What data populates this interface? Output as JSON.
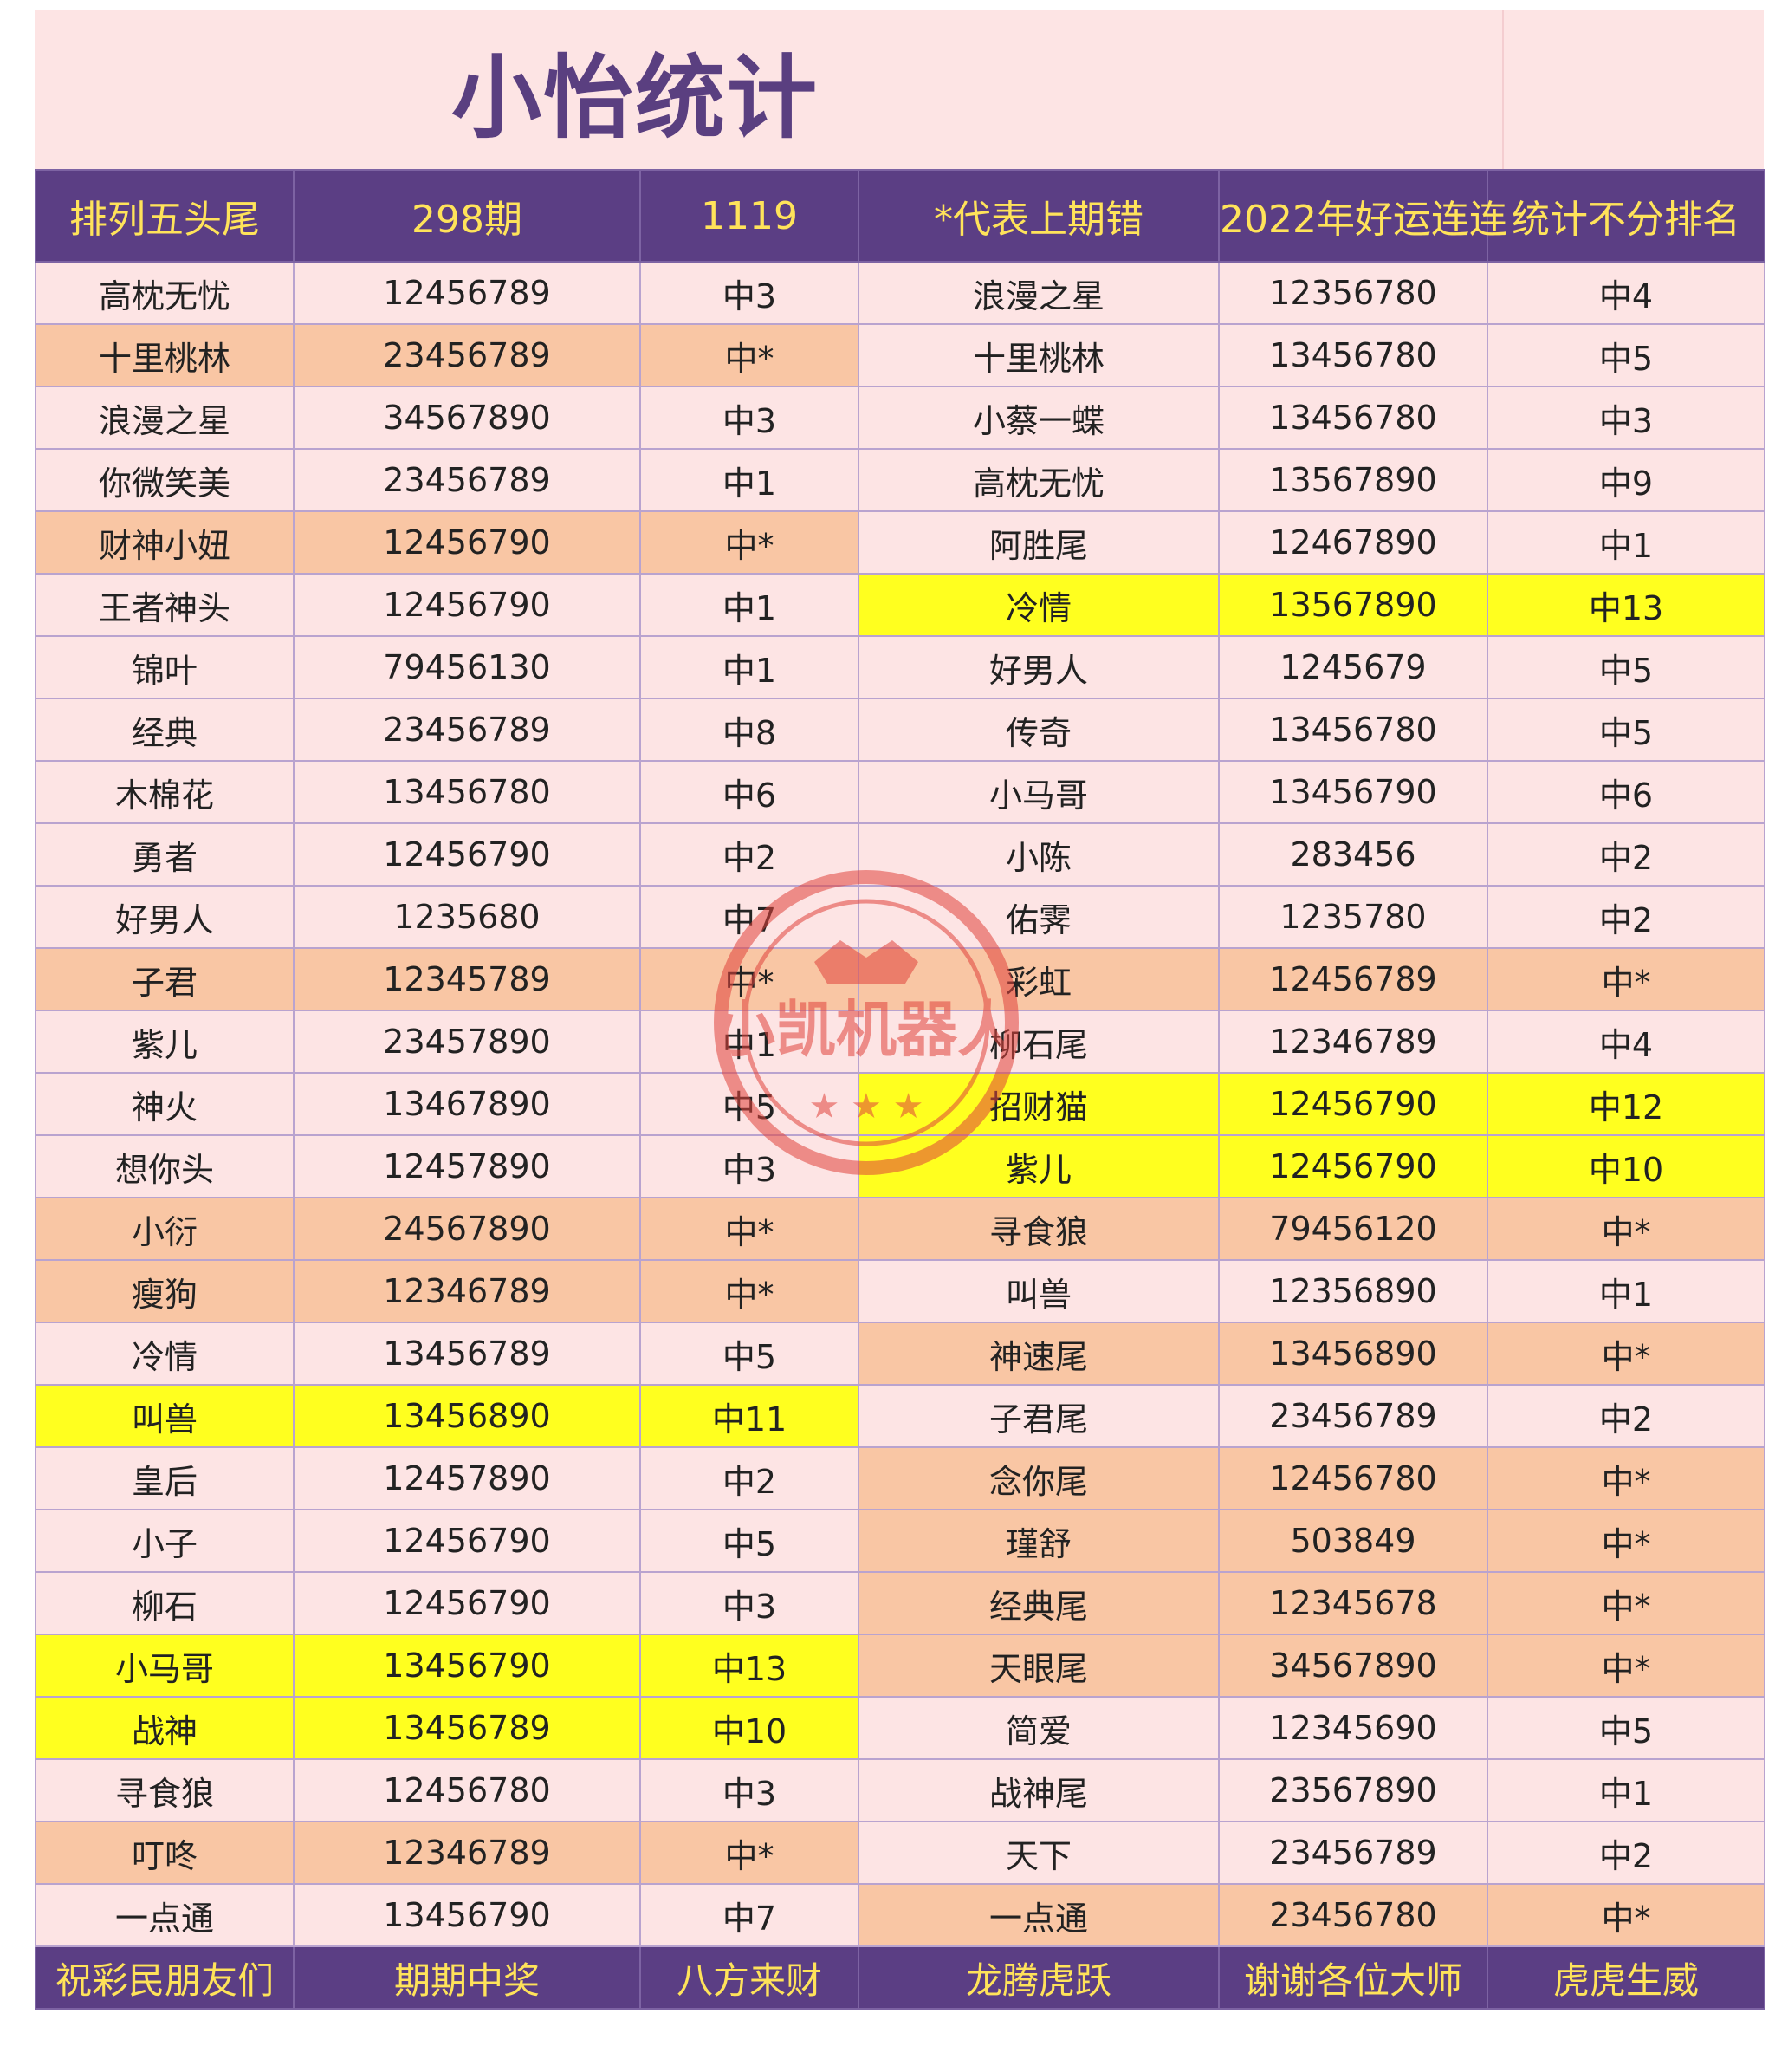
{
  "title": "小怡统计",
  "colors": {
    "pink": "#fde4e4",
    "orange": "#f9c6a4",
    "yellow": "#ffff1f",
    "header_bg": "#5b3e84",
    "header_text": "#ffe35a",
    "title_text": "#5a3f80"
  },
  "header": [
    "排列五头尾",
    "298期",
    "1119",
    "*代表上期错",
    "2022年好运连连",
    "统计不分排名"
  ],
  "rows": [
    [
      [
        "高枕无忧",
        "pink"
      ],
      [
        "12456789",
        "pink"
      ],
      [
        "中3",
        "pink"
      ],
      [
        "浪漫之星",
        "pink"
      ],
      [
        "12356780",
        "pink"
      ],
      [
        "中4",
        "pink"
      ]
    ],
    [
      [
        "十里桃林",
        "orange"
      ],
      [
        "23456789",
        "orange"
      ],
      [
        "中*",
        "orange"
      ],
      [
        "十里桃林",
        "pink"
      ],
      [
        "13456780",
        "pink"
      ],
      [
        "中5",
        "pink"
      ]
    ],
    [
      [
        "浪漫之星",
        "pink"
      ],
      [
        "34567890",
        "pink"
      ],
      [
        "中3",
        "pink"
      ],
      [
        "小蔡一蝶",
        "pink"
      ],
      [
        "13456780",
        "pink"
      ],
      [
        "中3",
        "pink"
      ]
    ],
    [
      [
        "你微笑美",
        "pink"
      ],
      [
        "23456789",
        "pink"
      ],
      [
        "中1",
        "pink"
      ],
      [
        "高枕无忧",
        "pink"
      ],
      [
        "13567890",
        "pink"
      ],
      [
        "中9",
        "pink"
      ]
    ],
    [
      [
        "财神小妞",
        "orange"
      ],
      [
        "12456790",
        "orange"
      ],
      [
        "中*",
        "orange"
      ],
      [
        "阿胜尾",
        "pink"
      ],
      [
        "12467890",
        "pink"
      ],
      [
        "中1",
        "pink"
      ]
    ],
    [
      [
        "王者神头",
        "pink"
      ],
      [
        "12456790",
        "pink"
      ],
      [
        "中1",
        "pink"
      ],
      [
        "冷情",
        "yellow"
      ],
      [
        "13567890",
        "yellow"
      ],
      [
        "中13",
        "yellow"
      ]
    ],
    [
      [
        "锦叶",
        "pink"
      ],
      [
        "79456130",
        "pink"
      ],
      [
        "中1",
        "pink"
      ],
      [
        "好男人",
        "pink"
      ],
      [
        "1245679",
        "pink"
      ],
      [
        "中5",
        "pink"
      ]
    ],
    [
      [
        "经典",
        "pink"
      ],
      [
        "23456789",
        "pink"
      ],
      [
        "中8",
        "pink"
      ],
      [
        "传奇",
        "pink"
      ],
      [
        "13456780",
        "pink"
      ],
      [
        "中5",
        "pink"
      ]
    ],
    [
      [
        "木棉花",
        "pink"
      ],
      [
        "13456780",
        "pink"
      ],
      [
        "中6",
        "pink"
      ],
      [
        "小马哥",
        "pink"
      ],
      [
        "13456790",
        "pink"
      ],
      [
        "中6",
        "pink"
      ]
    ],
    [
      [
        "勇者",
        "pink"
      ],
      [
        "12456790",
        "pink"
      ],
      [
        "中2",
        "pink"
      ],
      [
        "小陈",
        "pink"
      ],
      [
        "283456",
        "pink"
      ],
      [
        "中2",
        "pink"
      ]
    ],
    [
      [
        "好男人",
        "pink"
      ],
      [
        "1235680",
        "pink"
      ],
      [
        "中7",
        "pink"
      ],
      [
        "佑霁",
        "pink"
      ],
      [
        "1235780",
        "pink"
      ],
      [
        "中2",
        "pink"
      ]
    ],
    [
      [
        "子君",
        "orange"
      ],
      [
        "12345789",
        "orange"
      ],
      [
        "中*",
        "orange"
      ],
      [
        "彩虹",
        "orange"
      ],
      [
        "12456789",
        "orange"
      ],
      [
        "中*",
        "orange"
      ]
    ],
    [
      [
        "紫儿",
        "pink"
      ],
      [
        "23457890",
        "pink"
      ],
      [
        "中1",
        "pink"
      ],
      [
        "柳石尾",
        "pink"
      ],
      [
        "12346789",
        "pink"
      ],
      [
        "中4",
        "pink"
      ]
    ],
    [
      [
        "神火",
        "pink"
      ],
      [
        "13467890",
        "pink"
      ],
      [
        "中5",
        "pink"
      ],
      [
        "招财猫",
        "yellow"
      ],
      [
        "12456790",
        "yellow"
      ],
      [
        "中12",
        "yellow"
      ]
    ],
    [
      [
        "想你头",
        "pink"
      ],
      [
        "12457890",
        "pink"
      ],
      [
        "中3",
        "pink"
      ],
      [
        "紫儿",
        "yellow"
      ],
      [
        "12456790",
        "yellow"
      ],
      [
        "中10",
        "yellow"
      ]
    ],
    [
      [
        "小衍",
        "orange"
      ],
      [
        "24567890",
        "orange"
      ],
      [
        "中*",
        "orange"
      ],
      [
        "寻食狼",
        "orange"
      ],
      [
        "79456120",
        "orange"
      ],
      [
        "中*",
        "orange"
      ]
    ],
    [
      [
        "瘦狗",
        "orange"
      ],
      [
        "12346789",
        "orange"
      ],
      [
        "中*",
        "orange"
      ],
      [
        "叫兽",
        "pink"
      ],
      [
        "12356890",
        "pink"
      ],
      [
        "中1",
        "pink"
      ]
    ],
    [
      [
        "冷情",
        "pink"
      ],
      [
        "13456789",
        "pink"
      ],
      [
        "中5",
        "pink"
      ],
      [
        "神速尾",
        "orange"
      ],
      [
        "13456890",
        "orange"
      ],
      [
        "中*",
        "orange"
      ]
    ],
    [
      [
        "叫兽",
        "yellow"
      ],
      [
        "13456890",
        "yellow"
      ],
      [
        "中11",
        "yellow"
      ],
      [
        "子君尾",
        "pink"
      ],
      [
        "23456789",
        "pink"
      ],
      [
        "中2",
        "pink"
      ]
    ],
    [
      [
        "皇后",
        "pink"
      ],
      [
        "12457890",
        "pink"
      ],
      [
        "中2",
        "pink"
      ],
      [
        "念你尾",
        "orange"
      ],
      [
        "12456780",
        "orange"
      ],
      [
        "中*",
        "orange"
      ]
    ],
    [
      [
        "小子",
        "pink"
      ],
      [
        "12456790",
        "pink"
      ],
      [
        "中5",
        "pink"
      ],
      [
        "瑾舒",
        "orange"
      ],
      [
        "503849",
        "orange"
      ],
      [
        "中*",
        "orange"
      ]
    ],
    [
      [
        "柳石",
        "pink"
      ],
      [
        "12456790",
        "pink"
      ],
      [
        "中3",
        "pink"
      ],
      [
        "经典尾",
        "orange"
      ],
      [
        "12345678",
        "orange"
      ],
      [
        "中*",
        "orange"
      ]
    ],
    [
      [
        "小马哥",
        "yellow"
      ],
      [
        "13456790",
        "yellow"
      ],
      [
        "中13",
        "yellow"
      ],
      [
        "天眼尾",
        "orange"
      ],
      [
        "34567890",
        "orange"
      ],
      [
        "中*",
        "orange"
      ]
    ],
    [
      [
        "战神",
        "yellow"
      ],
      [
        "13456789",
        "yellow"
      ],
      [
        "中10",
        "yellow"
      ],
      [
        "简爱",
        "pink"
      ],
      [
        "12345690",
        "pink"
      ],
      [
        "中5",
        "pink"
      ]
    ],
    [
      [
        "寻食狼",
        "pink"
      ],
      [
        "12456780",
        "pink"
      ],
      [
        "中3",
        "pink"
      ],
      [
        "战神尾",
        "pink"
      ],
      [
        "23567890",
        "pink"
      ],
      [
        "中1",
        "pink"
      ]
    ],
    [
      [
        "叮咚",
        "orange"
      ],
      [
        "12346789",
        "orange"
      ],
      [
        "中*",
        "orange"
      ],
      [
        "天下",
        "pink"
      ],
      [
        "23456789",
        "pink"
      ],
      [
        "中2",
        "pink"
      ]
    ],
    [
      [
        "一点通",
        "pink"
      ],
      [
        "13456790",
        "pink"
      ],
      [
        "中7",
        "pink"
      ],
      [
        "一点通",
        "orange"
      ],
      [
        "23456780",
        "orange"
      ],
      [
        "中*",
        "orange"
      ]
    ]
  ],
  "footer": [
    "祝彩民朋友们",
    "期期中奖",
    "八方来财",
    "龙腾虎跃",
    "谢谢各位大师",
    "虎虎生威"
  ],
  "stamp_text": "小凯机器人"
}
